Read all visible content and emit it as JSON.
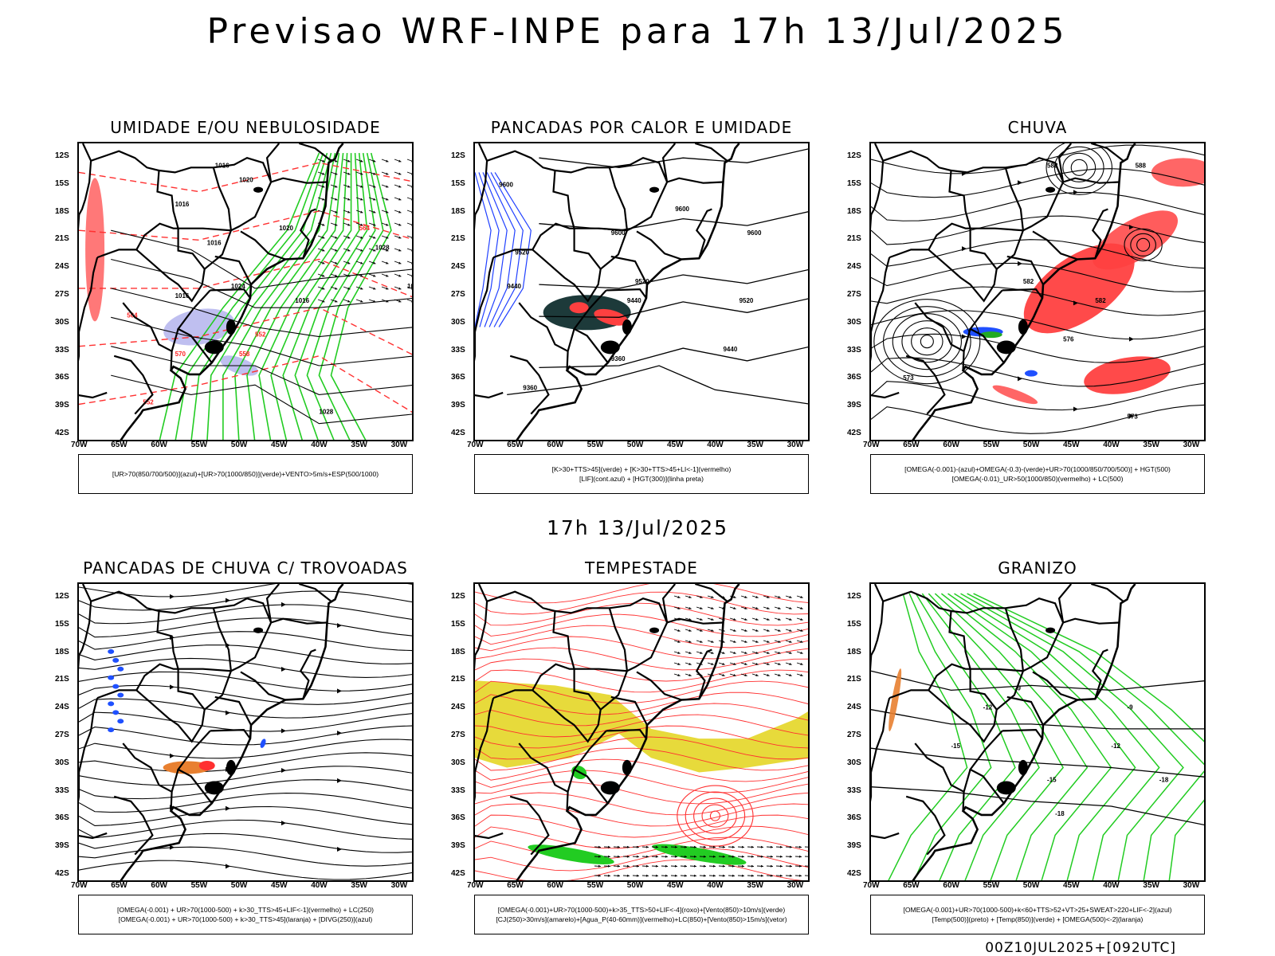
{
  "header": {
    "title": "Previsao WRF-INPE  para 17h 13/Jul/2025"
  },
  "mid_title": "17h 13/Jul/2025",
  "footer": "00Z10JUL2025+[092UTC]",
  "axes": {
    "lat_labels": [
      "12S",
      "15S",
      "18S",
      "21S",
      "24S",
      "27S",
      "30S",
      "33S",
      "36S",
      "39S",
      "42S"
    ],
    "lon_labels": [
      "70W",
      "65W",
      "60W",
      "55W",
      "50W",
      "45W",
      "40W",
      "35W",
      "30W"
    ]
  },
  "panels": [
    {
      "title": "UMIDADE E/OU NEBULOSIDADE",
      "legend": [
        "[UR>70(850/700/500)](azul)+[UR>70(1000/850)](verde)+VENTO>5m/s+ESP(500/1000)"
      ],
      "contour_labels": [
        "1016",
        "1020",
        "1024",
        "1028",
        "570",
        "564",
        "558",
        "552"
      ],
      "overlays": [
        "lavender",
        "green-contours",
        "red-dashed",
        "black-contours",
        "wind-vectors"
      ]
    },
    {
      "title": "PANCADAS POR CALOR E UMIDADE",
      "legend": [
        "[K>30+TTS>45](verde) + [K>30+TTS>45+LI<-1](vermelho)",
        "[LIF](cont.azul) + [HGT(300)](linha preta)"
      ],
      "contour_labels": [
        "9600",
        "9520",
        "9440",
        "9360"
      ],
      "overlays": [
        "darkgreen",
        "red",
        "blue-contours",
        "black-contours"
      ]
    },
    {
      "title": "CHUVA",
      "legend": [
        "[OMEGA(-0.001)-(azul)+OMEGA(-0.3)-(verde)+UR>70(1000/850/700/500)] + HGT(500)",
        "[OMEGA(-0.01)_UR>50(1000/850)(vermelho) + LC(500)"
      ],
      "contour_labels": [
        "588",
        "582",
        "576",
        "573"
      ],
      "overlays": [
        "red",
        "blue",
        "green",
        "streamlines"
      ]
    },
    {
      "title": "PANCADAS DE CHUVA C/ TROVOADAS",
      "legend": [
        "[OMEGA(-0.001) + UR>70(1000-500) + k>30_TTS>45+LIF<-1](vermelho) + LC(250)",
        "[OMEGA(-0.001) + UR>70(1000-500) + k>30_TTS>45](laranja) + [DIVG(250)](azul)"
      ],
      "contour_labels": [],
      "overlays": [
        "blue",
        "orange",
        "red",
        "streamlines"
      ]
    },
    {
      "title": "TEMPESTADE",
      "legend": [
        "[OMEGA(-0.001)+UR>70(1000-500)+k>35_TTS>50+LIF<-4](roxo)+[Vento(850)>10m/s](verde)",
        "[CJ(250)>30m/s](amarelo)+[Agua_P(40-60mm)](vermelho)+LC(850)+[Vento(850)>15m/s](vetor)"
      ],
      "contour_labels": [],
      "overlays": [
        "yellow",
        "green",
        "red-streamlines",
        "wind-vectors"
      ]
    },
    {
      "title": "GRANIZO",
      "legend": [
        "[OMEGA(-0.001)+UR>70(1000-500)+k<60+TTS>52+VT>25+SWEAT>220+LIF<-2](azul)",
        "[Temp(500)](preto) + [Temp(850)](verde) + [OMEGA(500)<-2](laranja)"
      ],
      "contour_labels": [
        "-9",
        "-12",
        "-15",
        "-18"
      ],
      "overlays": [
        "green-contours",
        "black-contours",
        "orange"
      ]
    }
  ]
}
